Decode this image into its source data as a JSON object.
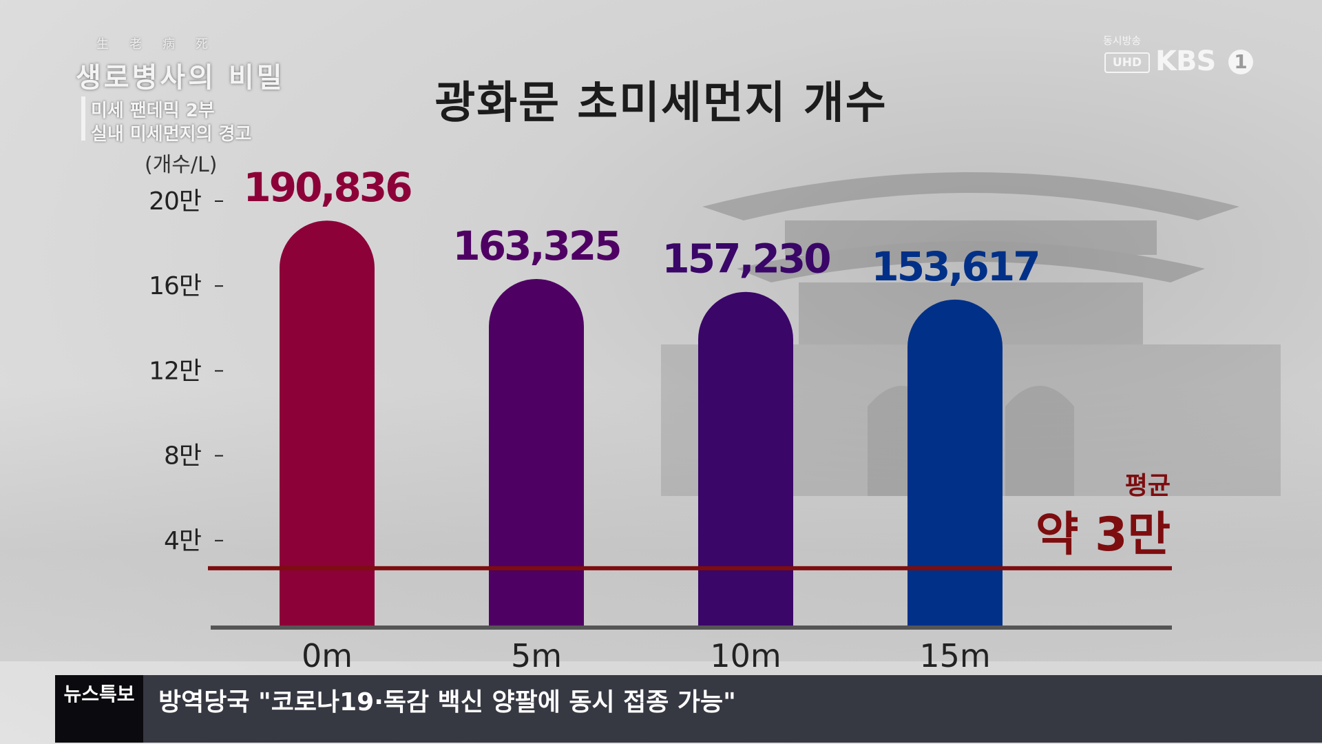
{
  "program": {
    "hanja": "生老病死",
    "title": "생로병사의 비밀",
    "episode_line1": "미세 팬데믹 2부",
    "episode_line2": "실내 미세먼지의 경고"
  },
  "channel": {
    "live": "동시방송",
    "uhd": "UHD",
    "name": "KBS",
    "number": "1"
  },
  "chart_data": {
    "type": "bar",
    "title": "광화문 초미세먼지 개수",
    "ylabel": "(개수/L)",
    "categories": [
      "0m",
      "5m",
      "10m",
      "15m"
    ],
    "values": [
      190836,
      163325,
      157230,
      153617
    ],
    "value_labels": [
      "190,836",
      "163,325",
      "157,230",
      "153,617"
    ],
    "bar_colors": [
      "#8c0138",
      "#4e0063",
      "#3a0668",
      "#003087"
    ],
    "label_colors": [
      "#8c0138",
      "#4e0063",
      "#3a0668",
      "#003087"
    ],
    "ylim": [
      0,
      200000
    ],
    "yticks": [
      {
        "value": 40000,
        "label": "4만"
      },
      {
        "value": 80000,
        "label": "8만"
      },
      {
        "value": 120000,
        "label": "12만"
      },
      {
        "value": 160000,
        "label": "16만"
      },
      {
        "value": 200000,
        "label": "20만"
      }
    ],
    "reference_line": {
      "value": 27000,
      "label_small": "평균",
      "label_big": "약 3만",
      "color": "#7d0d0f"
    },
    "grid": false,
    "legend": "none"
  },
  "ticker": {
    "tag": "뉴스특보",
    "text": "방역당국 \"코로나19·독감 백신 양팔에 동시 접종 가능\""
  }
}
